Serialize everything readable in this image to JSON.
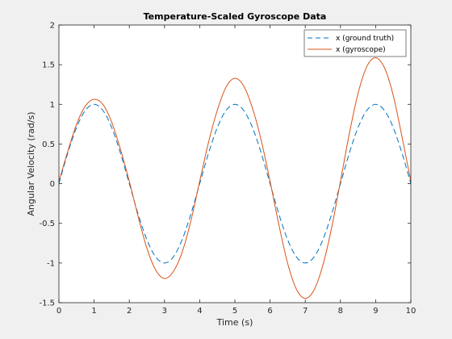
{
  "chart_data": {
    "type": "line",
    "title": "Temperature-Scaled Gyroscope Data",
    "xlabel": "Time (s)",
    "ylabel": "Angular Velocity (rad/s)",
    "xlim": [
      0,
      10
    ],
    "ylim": [
      -1.5,
      2
    ],
    "xticks": [
      0,
      1,
      2,
      3,
      4,
      5,
      6,
      7,
      8,
      9,
      10
    ],
    "yticks": [
      -1.5,
      -1,
      -0.5,
      0,
      0.5,
      1,
      1.5,
      2
    ],
    "xtick_labels": [
      "0",
      "1",
      "2",
      "3",
      "4",
      "5",
      "6",
      "7",
      "8",
      "9",
      "10"
    ],
    "ytick_labels": [
      "-1.5",
      "-1",
      "-0.5",
      "0",
      "0.5",
      "1",
      "1.5",
      "2"
    ],
    "grid": false,
    "legend_position": "top-right",
    "series": [
      {
        "name": "x (ground truth)",
        "color": "#0072bd",
        "style": "dashed",
        "x": [
          0,
          0.25,
          0.5,
          0.75,
          1,
          1.25,
          1.5,
          1.75,
          2,
          2.25,
          2.5,
          2.75,
          3,
          3.25,
          3.5,
          3.75,
          4,
          4.25,
          4.5,
          4.75,
          5,
          5.25,
          5.5,
          5.75,
          6,
          6.25,
          6.5,
          6.75,
          7,
          7.25,
          7.5,
          7.75,
          8,
          8.25,
          8.5,
          8.75,
          9,
          9.25,
          9.5,
          9.75,
          10
        ],
        "y": [
          0,
          0.383,
          0.707,
          0.924,
          1,
          0.924,
          0.707,
          0.383,
          0,
          -0.383,
          -0.707,
          -0.924,
          -1,
          -0.924,
          -0.707,
          -0.383,
          0,
          0.383,
          0.707,
          0.924,
          1,
          0.924,
          0.707,
          0.383,
          0,
          -0.383,
          -0.707,
          -0.924,
          -1,
          -0.924,
          -0.707,
          -0.383,
          0,
          0.383,
          0.707,
          0.924,
          1,
          0.924,
          0.707,
          0.383,
          0
        ]
      },
      {
        "name": "x (gyroscope)",
        "color": "#d95319",
        "style": "solid",
        "x": [
          0,
          0.25,
          0.5,
          0.75,
          1,
          1.25,
          1.5,
          1.75,
          2,
          2.25,
          2.5,
          2.75,
          3,
          3.25,
          3.5,
          3.75,
          4,
          4.25,
          4.5,
          4.75,
          5,
          5.25,
          5.5,
          5.75,
          6,
          6.25,
          6.5,
          6.75,
          7,
          7.25,
          7.5,
          7.75,
          8,
          8.25,
          8.5,
          8.75,
          9,
          9.25,
          9.5,
          9.75,
          10
        ],
        "y": [
          0.03,
          0.405,
          0.748,
          0.978,
          1.064,
          0.998,
          0.775,
          0.432,
          0.03,
          -0.412,
          -0.814,
          -1.088,
          -1.195,
          -1.108,
          -0.865,
          -0.468,
          0.03,
          0.52,
          0.924,
          1.218,
          1.328,
          1.232,
          0.952,
          0.543,
          0.03,
          -0.517,
          -1.005,
          -1.332,
          -1.445,
          -1.34,
          -1.028,
          -0.555,
          0.03,
          0.625,
          1.138,
          1.478,
          1.587,
          1.462,
          1.112,
          0.588,
          0.03
        ]
      }
    ]
  }
}
